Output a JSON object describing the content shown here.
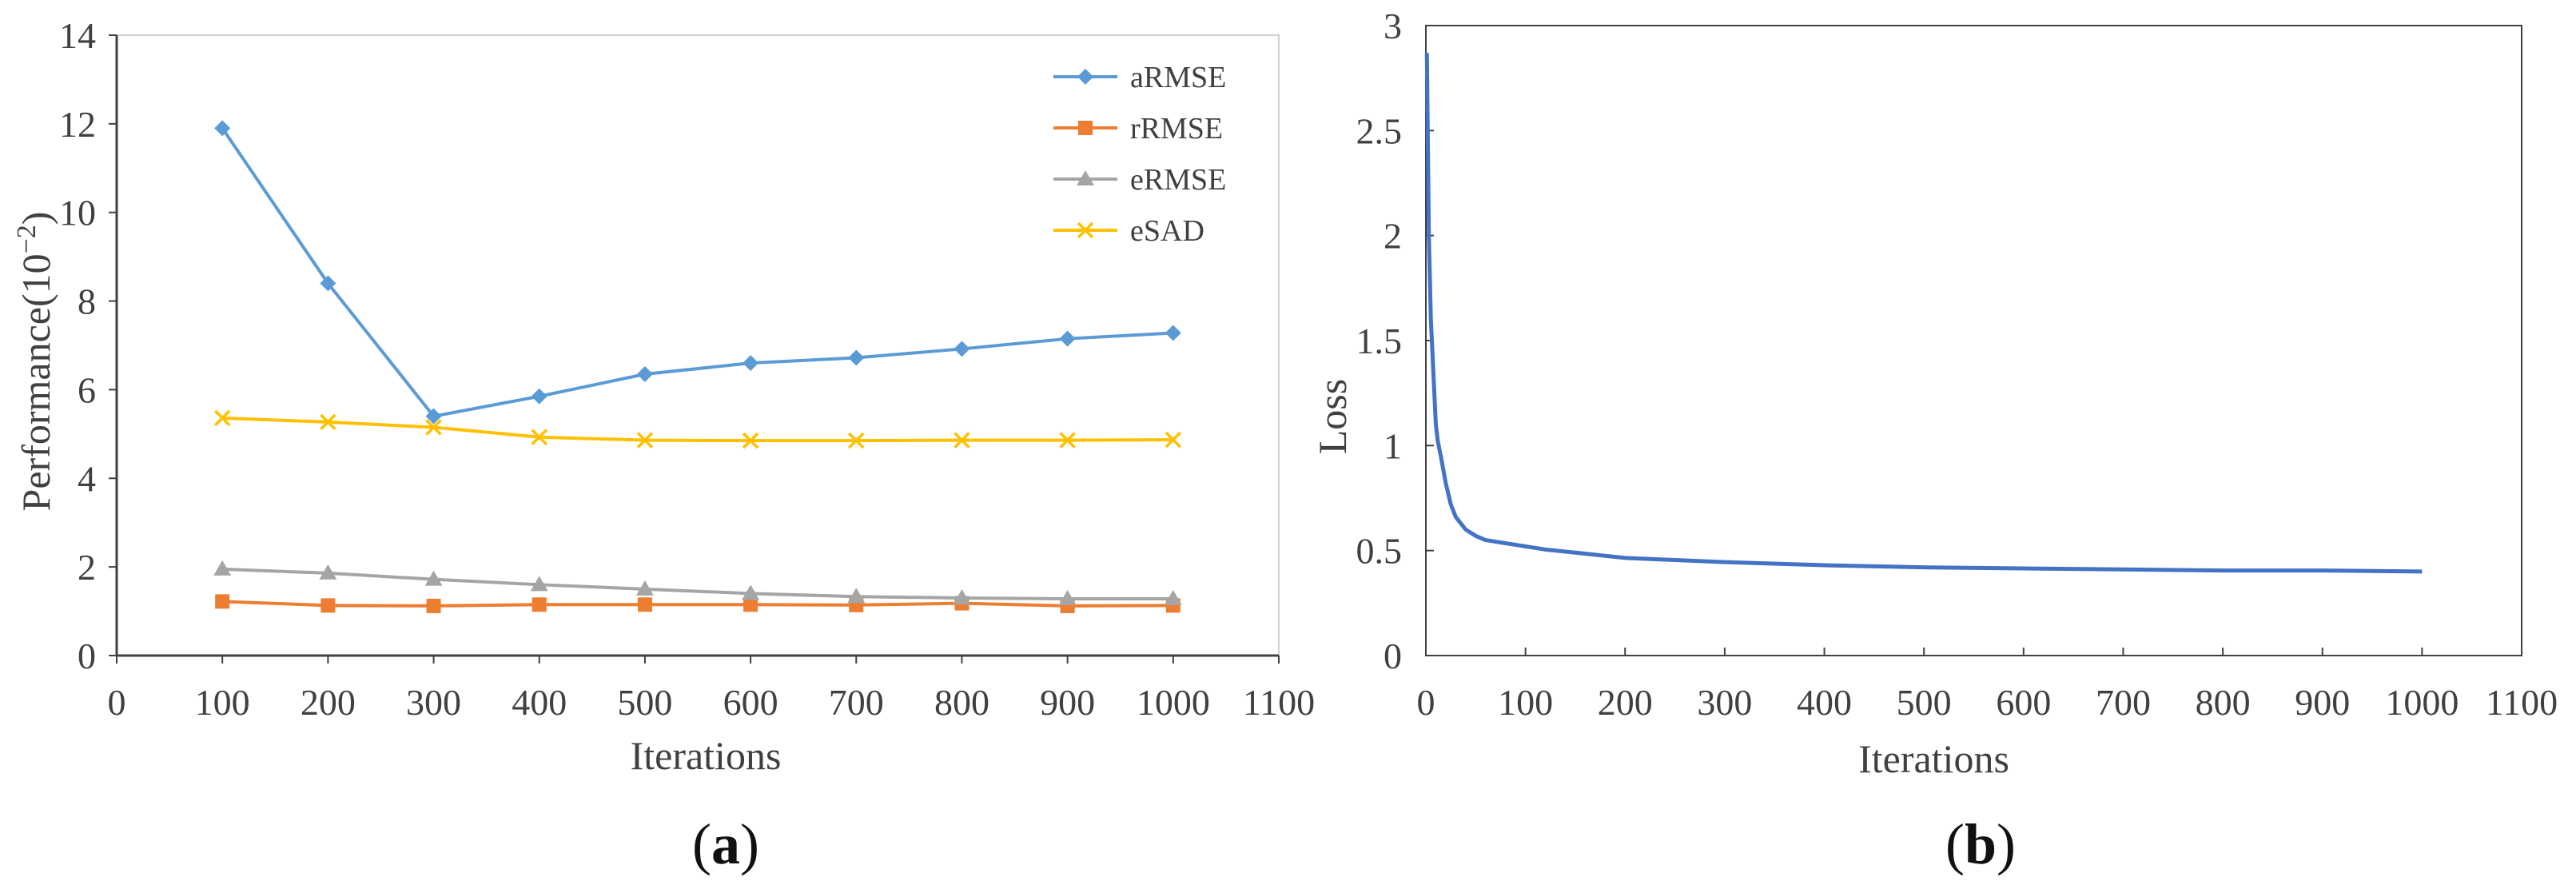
{
  "chart_data": [
    {
      "type": "line",
      "panel_label": "a",
      "title": "",
      "xlabel": "Iterations",
      "ylabel": "Performance(10",
      "ylabel_exponent": "−2",
      "ylabel_suffix": ")",
      "xlim": [
        0,
        1100
      ],
      "ylim": [
        0,
        14
      ],
      "xticks": [
        0,
        100,
        200,
        300,
        400,
        500,
        600,
        700,
        800,
        900,
        1000,
        1100
      ],
      "yticks": [
        0,
        2,
        4,
        6,
        8,
        10,
        12,
        14
      ],
      "grid": false,
      "legend_position": "top-right",
      "x": [
        100,
        200,
        300,
        400,
        500,
        600,
        700,
        800,
        900,
        1000
      ],
      "series": [
        {
          "name": "aRMSE",
          "color": "#5B9BD5",
          "marker": "diamond",
          "values": [
            11.9,
            8.4,
            5.4,
            5.85,
            6.35,
            6.6,
            6.72,
            6.92,
            7.15,
            7.28
          ]
        },
        {
          "name": "rRMSE",
          "color": "#ED7D31",
          "marker": "square",
          "values": [
            1.22,
            1.13,
            1.12,
            1.15,
            1.15,
            1.15,
            1.14,
            1.18,
            1.12,
            1.13
          ]
        },
        {
          "name": "eRMSE",
          "color": "#A5A5A5",
          "marker": "triangle",
          "values": [
            1.95,
            1.86,
            1.72,
            1.6,
            1.5,
            1.4,
            1.33,
            1.3,
            1.28,
            1.28
          ]
        },
        {
          "name": "eSAD",
          "color": "#FFC000",
          "marker": "x",
          "values": [
            5.36,
            5.27,
            5.15,
            4.93,
            4.86,
            4.85,
            4.85,
            4.86,
            4.86,
            4.87
          ]
        }
      ]
    },
    {
      "type": "line",
      "panel_label": "b",
      "title": "",
      "xlabel": "Iterations",
      "ylabel": "Loss",
      "xlim": [
        0,
        1100
      ],
      "ylim": [
        0,
        3
      ],
      "xticks": [
        0,
        100,
        200,
        300,
        400,
        500,
        600,
        700,
        800,
        900,
        1000,
        1100
      ],
      "ytick_labels": [
        "0",
        "0.5",
        "1",
        "1.5",
        "2",
        "2.5",
        "3"
      ],
      "grid": false,
      "legend_position": "none",
      "series": [
        {
          "name": "Loss",
          "color": "#4472C4",
          "x": [
            1,
            3,
            5,
            8,
            10,
            12,
            15,
            20,
            25,
            30,
            40,
            50,
            60,
            80,
            100,
            120,
            150,
            200,
            250,
            300,
            400,
            500,
            600,
            700,
            800,
            900,
            1000
          ],
          "values": [
            2.87,
            2.0,
            1.6,
            1.3,
            1.1,
            1.02,
            0.95,
            0.82,
            0.72,
            0.66,
            0.6,
            0.57,
            0.55,
            0.535,
            0.52,
            0.505,
            0.49,
            0.465,
            0.455,
            0.445,
            0.43,
            0.42,
            0.415,
            0.41,
            0.405,
            0.405,
            0.4
          ]
        }
      ]
    }
  ]
}
